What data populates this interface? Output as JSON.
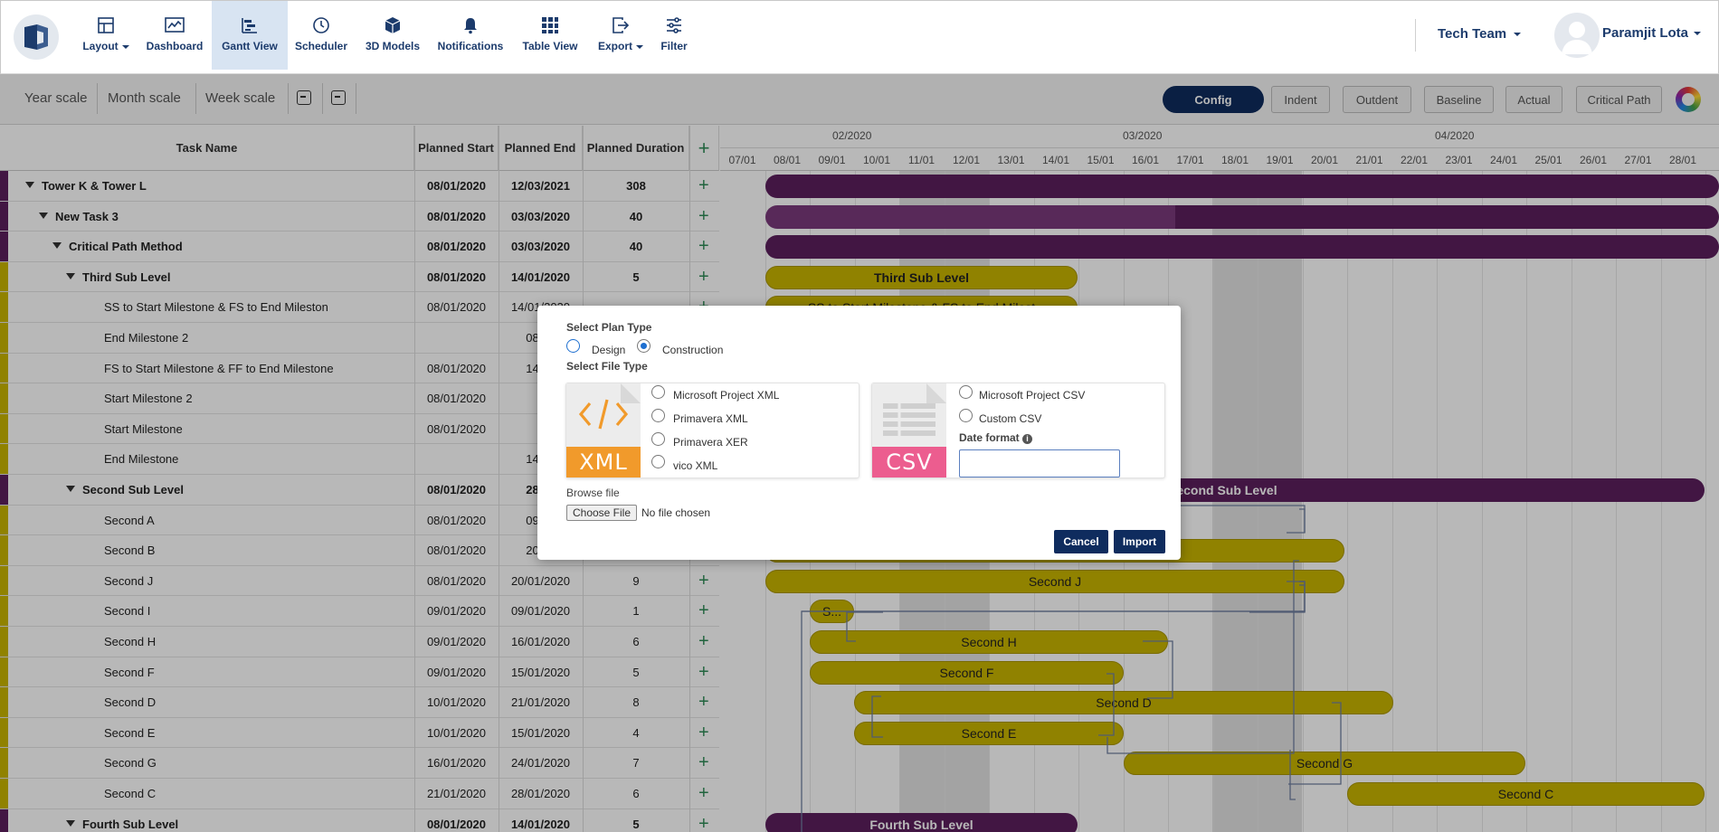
{
  "toolbar": {
    "items": [
      {
        "label": "Layout",
        "icon": "layout-icon"
      },
      {
        "label": "Dashboard",
        "icon": "dashboard-icon"
      },
      {
        "label": "Gantt View",
        "icon": "gantt-icon"
      },
      {
        "label": "Scheduler",
        "icon": "clock-icon"
      },
      {
        "label": "3D Models",
        "icon": "cube-icon"
      },
      {
        "label": "Notifications",
        "icon": "bell-icon"
      },
      {
        "label": "Table View",
        "icon": "grid-icon"
      },
      {
        "label": "Export",
        "icon": "export-icon"
      },
      {
        "label": "Filter",
        "icon": "filter-icon"
      }
    ],
    "active": "Gantt View",
    "team": "Tech Team",
    "user": "Paramjit Lota"
  },
  "subbar": {
    "scales": [
      "Year scale",
      "Month scale",
      "Week scale"
    ],
    "config": "Config",
    "buttons": [
      "Indent",
      "Outdent",
      "Baseline",
      "Actual",
      "Critical Path"
    ]
  },
  "grid": {
    "headers": [
      "Task Name",
      "Planned Start",
      "Planned End",
      "Planned Duration"
    ],
    "rows": [
      {
        "name": "Tower K & Tower L",
        "start": "08/01/2020",
        "end": "12/03/2021",
        "duration": "308",
        "level": 0,
        "group": true
      },
      {
        "name": "New Task 3",
        "start": "08/01/2020",
        "end": "03/03/2020",
        "duration": "40",
        "level": 1,
        "group": true
      },
      {
        "name": "Critical Path Method",
        "start": "08/01/2020",
        "end": "03/03/2020",
        "duration": "40",
        "level": 2,
        "group": true
      },
      {
        "name": "Third Sub Level",
        "start": "08/01/2020",
        "end": "14/01/2020",
        "duration": "5",
        "level": 3,
        "group": true
      },
      {
        "name": "SS to Start Milestone & FS to End Mileston",
        "start": "08/01/2020",
        "end": "14/01/2020",
        "duration": "",
        "level": 4,
        "group": false
      },
      {
        "name": "End Milestone 2",
        "start": "",
        "end": "08/01",
        "duration": "",
        "level": 4,
        "group": false
      },
      {
        "name": "FS to Start Milestone & FF to End Milestone",
        "start": "08/01/2020",
        "end": "14/01",
        "duration": "",
        "level": 4,
        "group": false
      },
      {
        "name": "Start Milestone 2",
        "start": "08/01/2020",
        "end": "",
        "duration": "",
        "level": 4,
        "group": false
      },
      {
        "name": "Start Milestone",
        "start": "08/01/2020",
        "end": "",
        "duration": "",
        "level": 4,
        "group": false
      },
      {
        "name": "End Milestone",
        "start": "",
        "end": "14/01",
        "duration": "",
        "level": 4,
        "group": false
      },
      {
        "name": "Second Sub Level",
        "start": "08/01/2020",
        "end": "28/01",
        "duration": "",
        "level": 3,
        "group": true
      },
      {
        "name": "Second A",
        "start": "08/01/2020",
        "end": "09/01",
        "duration": "",
        "level": 4,
        "group": false
      },
      {
        "name": "Second B",
        "start": "08/01/2020",
        "end": "20/01",
        "duration": "",
        "level": 4,
        "group": false
      },
      {
        "name": "Second J",
        "start": "08/01/2020",
        "end": "20/01/2020",
        "duration": "9",
        "level": 4,
        "group": false
      },
      {
        "name": "Second I",
        "start": "09/01/2020",
        "end": "09/01/2020",
        "duration": "1",
        "level": 4,
        "group": false
      },
      {
        "name": "Second H",
        "start": "09/01/2020",
        "end": "16/01/2020",
        "duration": "6",
        "level": 4,
        "group": false
      },
      {
        "name": "Second F",
        "start": "09/01/2020",
        "end": "15/01/2020",
        "duration": "5",
        "level": 4,
        "group": false
      },
      {
        "name": "Second D",
        "start": "10/01/2020",
        "end": "21/01/2020",
        "duration": "8",
        "level": 4,
        "group": false
      },
      {
        "name": "Second E",
        "start": "10/01/2020",
        "end": "15/01/2020",
        "duration": "4",
        "level": 4,
        "group": false
      },
      {
        "name": "Second G",
        "start": "16/01/2020",
        "end": "24/01/2020",
        "duration": "7",
        "level": 4,
        "group": false
      },
      {
        "name": "Second C",
        "start": "21/01/2020",
        "end": "28/01/2020",
        "duration": "6",
        "level": 4,
        "group": false
      },
      {
        "name": "Fourth Sub Level",
        "start": "08/01/2020",
        "end": "14/01/2020",
        "duration": "5",
        "level": 3,
        "group": true
      }
    ]
  },
  "gantt": {
    "months": [
      "02/2020",
      "03/2020",
      "04/2020"
    ],
    "days": [
      "07/01",
      "08/01",
      "09/01",
      "10/01",
      "11/01",
      "12/01",
      "13/01",
      "14/01",
      "15/01",
      "16/01",
      "17/01",
      "18/01",
      "19/01",
      "20/01",
      "21/01",
      "22/01",
      "23/01",
      "24/01",
      "25/01",
      "26/01",
      "27/01",
      "28/01"
    ],
    "bars": [
      {
        "row": 0,
        "label": "",
        "kind": "p"
      },
      {
        "row": 1,
        "label": "",
        "kind": "p"
      },
      {
        "row": 2,
        "label": "",
        "kind": "p"
      },
      {
        "row": 3,
        "label": "Third Sub Level",
        "kind": "y"
      },
      {
        "row": 4,
        "label": "SS to Start Milestone & FS to End Milest",
        "kind": "y"
      },
      {
        "row": 10,
        "label": "Second Sub Level",
        "kind": "p"
      },
      {
        "row": 12,
        "label": "",
        "kind": "y"
      },
      {
        "row": 13,
        "label": "Second J",
        "kind": "y"
      },
      {
        "row": 14,
        "label": "S...",
        "kind": "y"
      },
      {
        "row": 15,
        "label": "Second H",
        "kind": "y"
      },
      {
        "row": 16,
        "label": "Second F",
        "kind": "y"
      },
      {
        "row": 17,
        "label": "Second D",
        "kind": "y"
      },
      {
        "row": 18,
        "label": "Second E",
        "kind": "y"
      },
      {
        "row": 19,
        "label": "Second G",
        "kind": "y"
      },
      {
        "row": 20,
        "label": "Second C",
        "kind": "y"
      },
      {
        "row": 21,
        "label": "Fourth Sub Level",
        "kind": "p"
      }
    ]
  },
  "dialog": {
    "plan_type_label": "Select Plan Type",
    "plan_types": [
      "Design",
      "Construction"
    ],
    "plan_type_selected": "Construction",
    "file_type_label": "Select File Type",
    "xml_icon_label": "XML",
    "csv_icon_label": "CSV",
    "xml_options": [
      "Microsoft Project XML",
      "Primavera XML",
      "Primavera XER",
      "vico XML"
    ],
    "csv_options": [
      "Microsoft Project CSV",
      "Custom CSV"
    ],
    "date_format_label": "Date format",
    "date_format_value": "",
    "browse_label": "Browse file",
    "choose_button": "Choose File",
    "no_file": "No file chosen",
    "cancel": "Cancel",
    "import": "Import"
  },
  "colors": {
    "brand": "#0f2c5e",
    "purple": "#5c1f5e",
    "yellow": "#c8b400",
    "add": "#2e8b57"
  }
}
